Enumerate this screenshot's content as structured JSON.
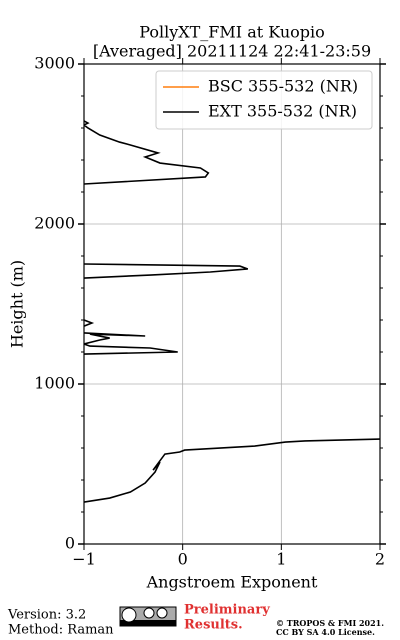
{
  "chart_data": {
    "type": "line",
    "title": [
      "PollyXT_FMI at Kuopio",
      "[Averaged] 20211124 22:41-23:59"
    ],
    "x_label": "Angstroem Exponent",
    "y_label": "Height (m)",
    "xlim": [
      -1,
      2
    ],
    "ylim": [
      0,
      3000
    ],
    "xticks": [
      {
        "value": -1,
        "label": "−1"
      },
      0,
      1,
      2
    ],
    "yticks": [
      0,
      1000,
      2000,
      3000
    ],
    "grid": true,
    "legend": "upper right",
    "series": [
      {
        "name": "BSC 355-532 (NR)",
        "color": "#ff7f0e",
        "x": [],
        "y": []
      },
      {
        "name": "EXT 355-532 (NR)",
        "color": "#000000",
        "x": [
          -1.0,
          -0.74,
          -0.53,
          -0.38,
          -0.28,
          -0.23,
          -0.3,
          -0.18,
          -0.03,
          0.02,
          0.73,
          1.04,
          1.24,
          2.0,
          null,
          -1.0,
          -0.05,
          -0.33,
          -0.94,
          -1.0,
          -0.84,
          -0.74,
          -0.94,
          -0.38,
          -1.0,
          null,
          -1.0,
          -0.92,
          -1.0,
          null,
          -1.0,
          -0.33,
          0.28,
          0.66,
          0.58,
          -1.0,
          null,
          -1.0,
          0.23,
          0.26,
          0.18,
          -0.23,
          -0.38,
          -0.25,
          -0.53,
          -0.64,
          -0.84,
          -0.96,
          -1.0,
          -0.96,
          -1.0
        ],
        "y": [
          262,
          287,
          325,
          381,
          450,
          512,
          462,
          562,
          575,
          587,
          612,
          637,
          644,
          656,
          null,
          1187,
          1200,
          1225,
          1237,
          1250,
          1275,
          1287,
          1312,
          1300,
          1319,
          null,
          1362,
          1381,
          1400,
          null,
          1662,
          1681,
          1700,
          1719,
          1737,
          1750,
          null,
          2250,
          2294,
          2319,
          2350,
          2381,
          2419,
          2444,
          2494,
          2512,
          2556,
          2600,
          2619,
          2631,
          2644
        ]
      }
    ]
  },
  "footer": {
    "version": "Version: 3.2",
    "method": "Method: Raman",
    "notice": [
      "Preliminary",
      "Results."
    ],
    "copyright": [
      "© TROPOS & FMI 2021.",
      "CC BY SA 4.0 License."
    ]
  }
}
